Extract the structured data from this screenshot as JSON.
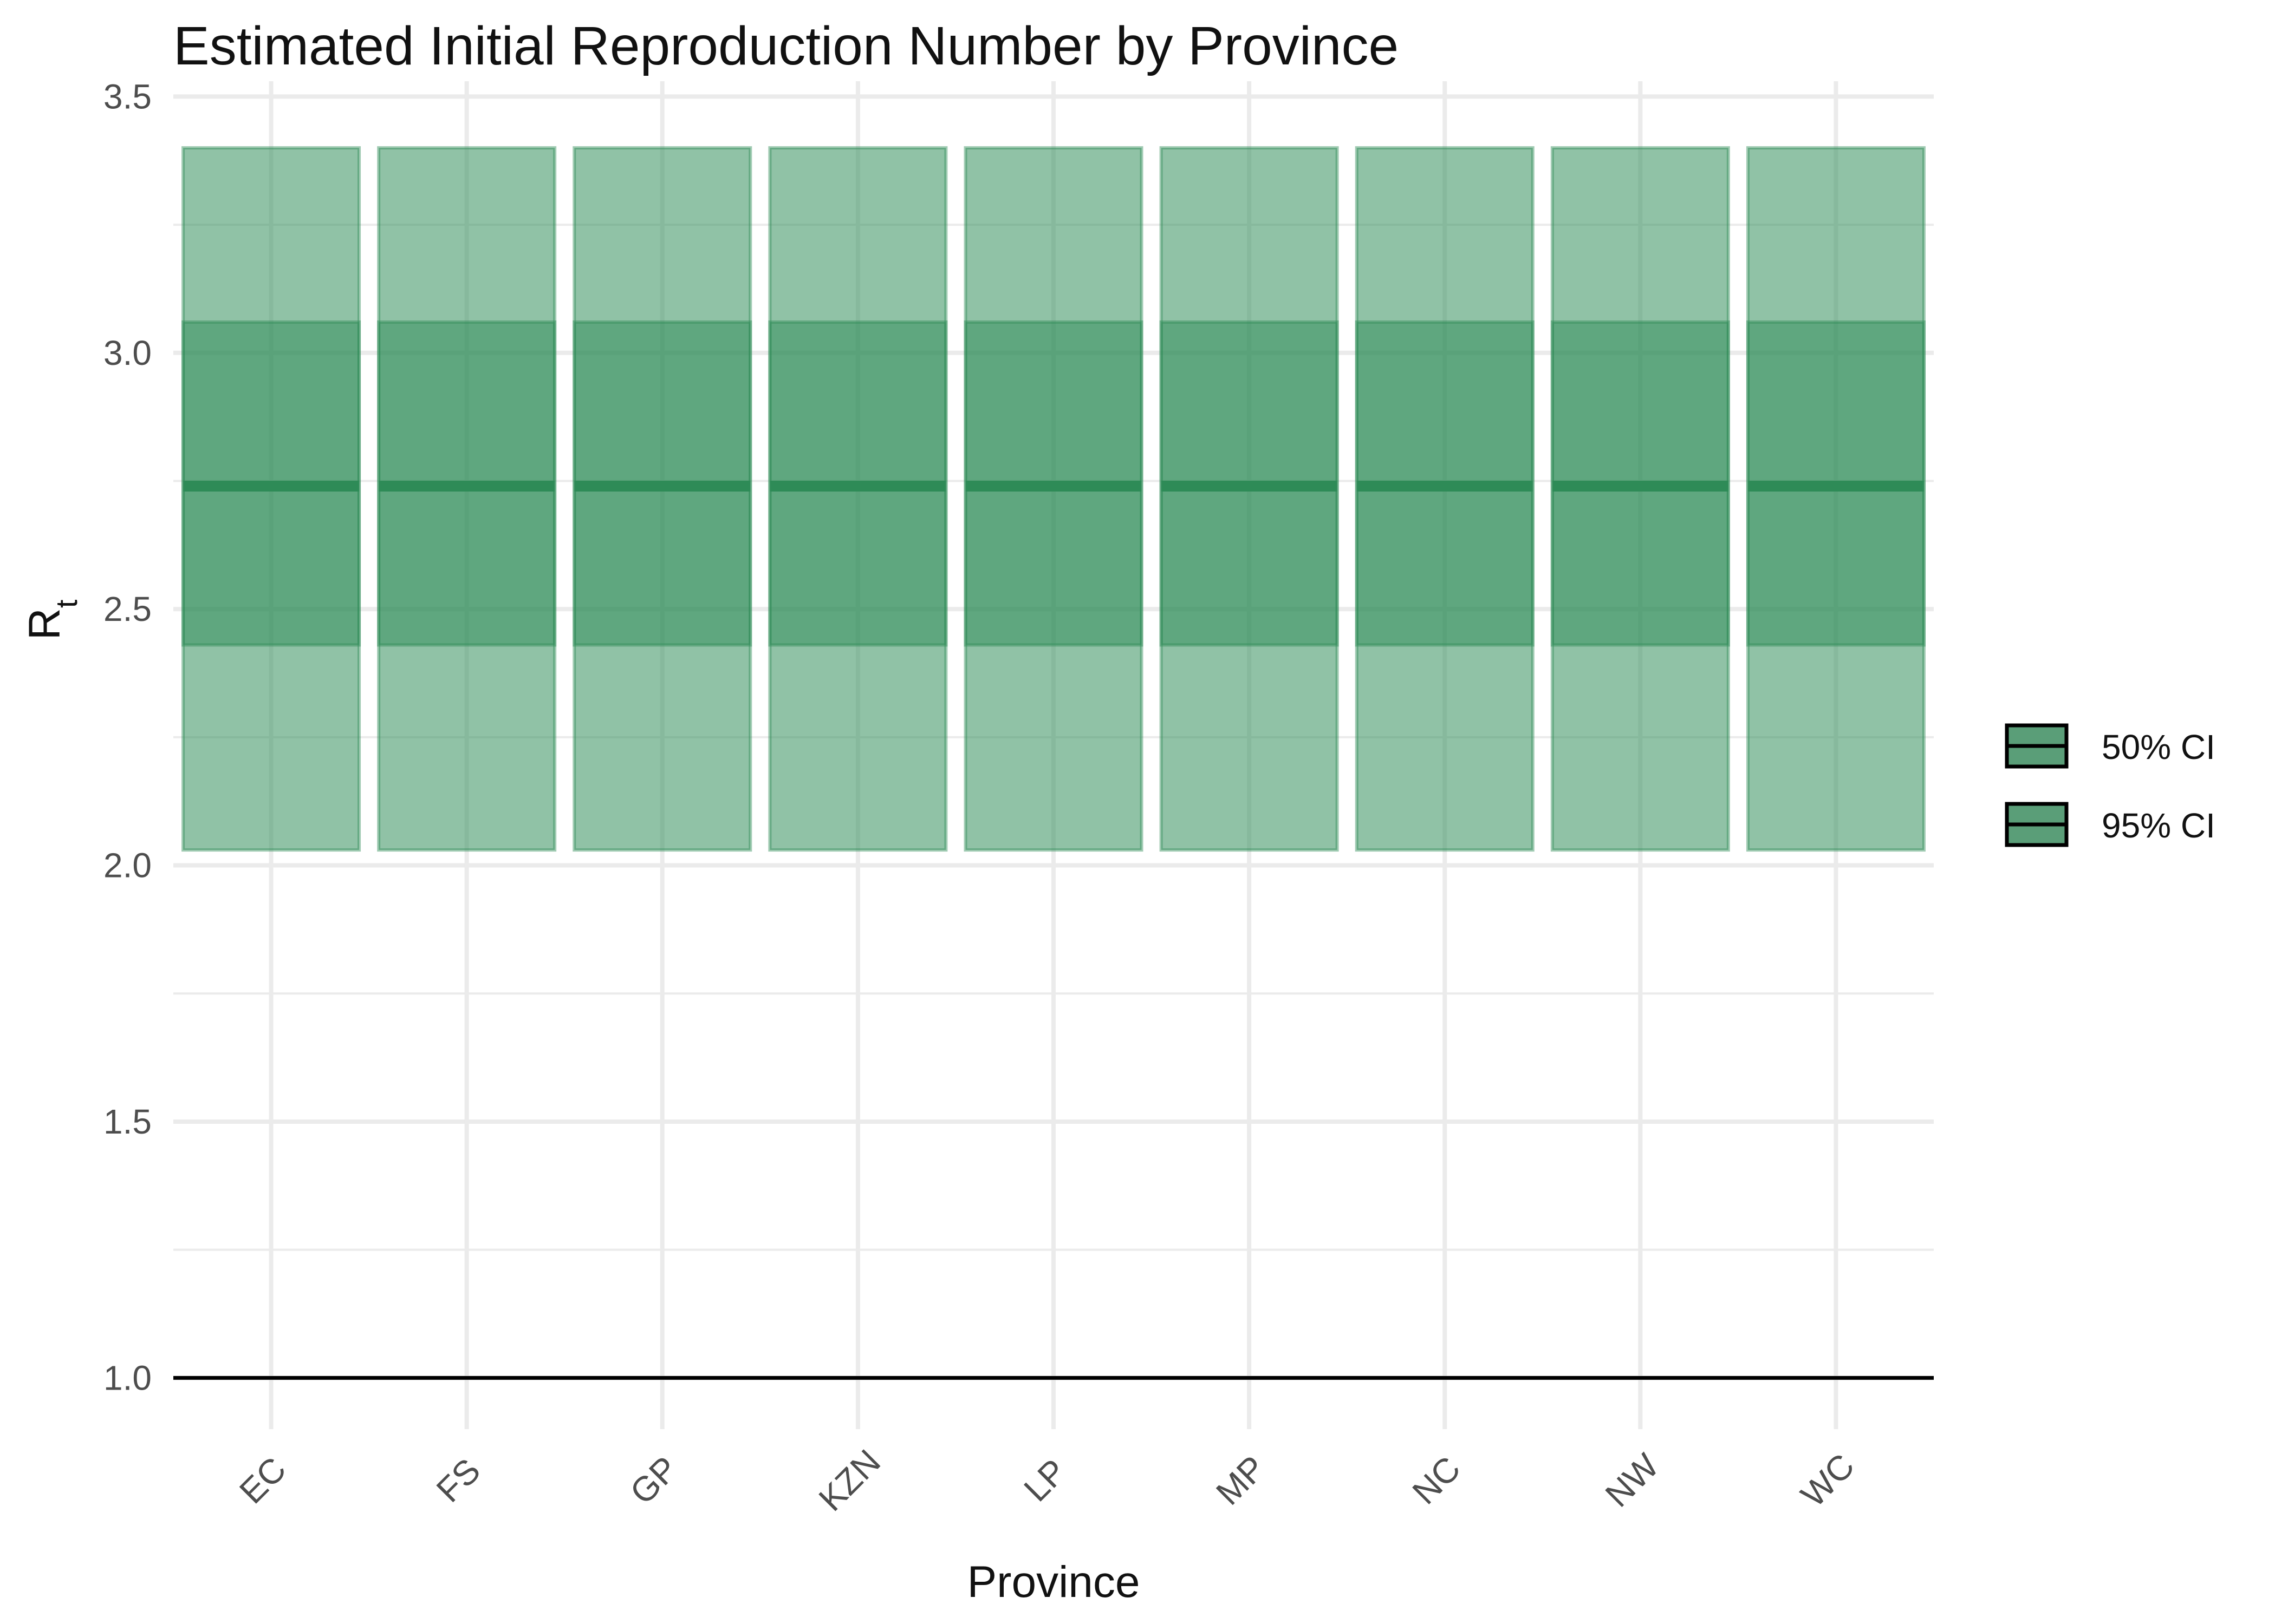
{
  "chart_data": {
    "type": "bar",
    "title": "Estimated Initial Reproduction Number by Province",
    "xlabel": "Province",
    "ylabel": "R",
    "ylabel_subscript": "t",
    "categories": [
      "EC",
      "FS",
      "GP",
      "KZN",
      "LP",
      "MP",
      "NC",
      "NW",
      "WC"
    ],
    "series": [
      {
        "name": "95% CI",
        "lower": [
          2.03,
          2.03,
          2.03,
          2.03,
          2.03,
          2.03,
          2.03,
          2.03,
          2.03
        ],
        "upper": [
          3.4,
          3.4,
          3.4,
          3.4,
          3.4,
          3.4,
          3.4,
          3.4,
          3.4
        ]
      },
      {
        "name": "50% CI",
        "lower": [
          2.43,
          2.43,
          2.43,
          2.43,
          2.43,
          2.43,
          2.43,
          2.43,
          2.43
        ],
        "upper": [
          3.06,
          3.06,
          3.06,
          3.06,
          3.06,
          3.06,
          3.06,
          3.06,
          3.06
        ]
      }
    ],
    "median": [
      2.74,
      2.74,
      2.74,
      2.74,
      2.74,
      2.74,
      2.74,
      2.74,
      2.74
    ],
    "reference_line": 1.0,
    "ylim": [
      0.9,
      3.53
    ],
    "yticks": [
      1.0,
      1.5,
      2.0,
      2.5,
      3.0,
      3.5
    ],
    "ytick_labels": [
      "1.0",
      "1.5",
      "2.0",
      "2.5",
      "3.0",
      "3.5"
    ],
    "grid": true,
    "legend_position": "right",
    "legend": [
      {
        "label": "50% CI"
      },
      {
        "label": "95% CI"
      }
    ],
    "colors": {
      "fill": "#2e8b57",
      "median": "#2e8b57",
      "grid": "#ebebeb",
      "reference": "#000000",
      "legend_fill": "#5a9e78"
    }
  }
}
